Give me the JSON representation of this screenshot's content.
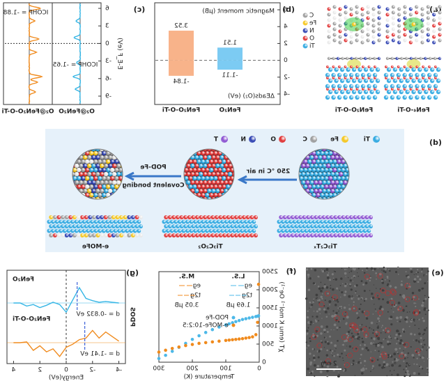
{
  "panel_labels": [
    "(a)",
    "(b)",
    "(c)",
    "(d)",
    "(e)",
    "(f)",
    "(g)"
  ],
  "panel_a": {
    "structures": [
      "FeN₄-O-Ti",
      "FeN₂O-O-Ti"
    ],
    "legend": [
      "C",
      "Fe",
      "N",
      "O",
      "Ti"
    ]
  },
  "chart_data": [
    {
      "type": "bar",
      "categories": [
        "FeN₂O",
        "FeN₂O-O-Ti"
      ],
      "series": [
        {
          "name": "Magnetic moment (μB)",
          "values": [
            1.51,
            3.52
          ]
        },
        {
          "name": "ΔEads(O₂) (eV)",
          "values": [
            -1.11,
            -1.84
          ]
        }
      ],
      "colors": [
        "#7ccbf3",
        "#f8b38a"
      ],
      "ylim": [
        -4.5,
        6.5
      ],
      "yticks": [
        -4,
        -2,
        0,
        2,
        4,
        6
      ]
    },
    {
      "type": "cohp",
      "categories": [
        "O₂@FeN₂O",
        "O₂@FeN₂O-O-Ti"
      ],
      "annotations": [
        "ICOHP = -1.65",
        "ICOHP = -1.88"
      ],
      "colors": [
        "#33b5e5",
        "#f08a1c"
      ],
      "y_label": "E-E_F (eV)",
      "ylim": [
        -10,
        7
      ],
      "yticks": [
        -9,
        -6,
        -3,
        0,
        3,
        6
      ]
    },
    {
      "type": "scatter",
      "x_label": "Temperature (K)",
      "y_label": "χT (emu K mol⁻¹ Oe⁻¹)",
      "x": [
        2,
        5,
        10,
        20,
        30,
        40,
        50,
        60,
        70,
        80,
        90,
        100,
        120,
        140,
        160,
        180,
        200,
        220,
        240,
        260,
        280,
        300
      ],
      "series": [
        {
          "name": "POD-Fe",
          "color": "#4cb8e8",
          "values": [
            1280,
            1270,
            1260,
            1240,
            1220,
            1200,
            1180,
            1150,
            1120,
            1090,
            1060,
            1030,
            970,
            900,
            820,
            730,
            630,
            520,
            410,
            300,
            190,
            100
          ]
        },
        {
          "name": "e-MOFe-10:2:5",
          "color": "#f08a1c",
          "values": [
            2150,
            1100,
            760,
            700,
            680,
            665,
            650,
            640,
            630,
            620,
            610,
            600,
            580,
            560,
            540,
            520,
            490,
            460,
            420,
            380,
            330,
            280
          ]
        }
      ],
      "annotations": [
        "L.S.",
        "eg",
        "t2g",
        "1.69 μB",
        "M.S.",
        "eg",
        "t2g",
        "3.05 μB"
      ],
      "xlim": [
        0,
        300
      ],
      "xticks": [
        0,
        100,
        200,
        300
      ],
      "ylim": [
        0,
        2500
      ],
      "yticks": [
        0,
        500,
        1000,
        1500,
        2000,
        2500
      ]
    },
    {
      "type": "line",
      "x_label": "Energy(eV)",
      "y_label": "PDOS",
      "x": [
        -4,
        -3.5,
        -3,
        -2.5,
        -2,
        -1.5,
        -1,
        -0.5,
        0,
        0.5,
        1,
        1.5,
        2,
        2.5,
        3,
        3.5,
        4
      ],
      "series": [
        {
          "name": "FeN₂O",
          "color": "#33b5e5",
          "values": [
            0,
            0.05,
            0.1,
            0.05,
            0.15,
            0.3,
            1.0,
            0.2,
            -0.6,
            -0.1,
            0.05,
            -0.15,
            -0.3,
            -0.1,
            -0.2,
            0,
            0
          ]
        },
        {
          "name": "FeN₂O-O-Ti",
          "color": "#f08a1c",
          "values": [
            0.1,
            0.4,
            0.7,
            0.3,
            0.8,
            0.3,
            0.2,
            -0.1,
            -0.3,
            -0.9,
            -0.4,
            -0.6,
            -0.2,
            -0.5,
            0.05,
            0,
            0
          ]
        }
      ],
      "d_centers": [
        {
          "value": -0.832,
          "label": "d = -0.832 eV"
        },
        {
          "value": -1.41,
          "label": "d = -1.41 eV"
        }
      ],
      "xlim": [
        -4.5,
        4.5
      ],
      "xticks": [
        -4,
        -2,
        0,
        2,
        4
      ]
    }
  ],
  "schematic": {
    "legend": [
      "Ti",
      "Fe",
      "C",
      "O",
      "N",
      "T"
    ],
    "stages": [
      "Ti₃C₂Tₓ",
      "Ti₃C₂O₂",
      "e-MOFe"
    ],
    "step1": "250 °C in air",
    "step2": [
      "POD-Fe",
      "Covalent bonding"
    ]
  },
  "panel_e": {
    "scale_bar": "2 nm"
  }
}
